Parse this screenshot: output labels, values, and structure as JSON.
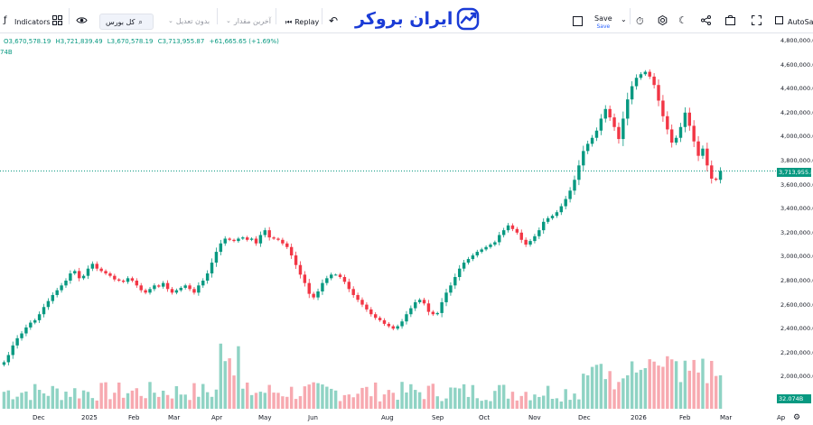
{
  "toolbar": {
    "symbol_icon": "pine-logo-icon",
    "indicators_label": "Indicators",
    "symbol_label": "کل بورس",
    "adjust_label": "بدون تعدیل",
    "last_value_label": "آخرین مقدار",
    "replay_label": "Replay",
    "save_label": "Save",
    "save_sub": "Save",
    "autosave_label": "AutoSave"
  },
  "brand": {
    "name": "ایران بروکر",
    "color": "#1a3bd6"
  },
  "legend": {
    "open": "O3,670,578.19",
    "high": "H3,721,839.49",
    "low": "L3,670,578.19",
    "close": "C3,713,955.87",
    "change": "+61,665.65 (+1.69%)",
    "volume_short": "74B"
  },
  "price_axis": {
    "labels": [
      "4,800,000.00",
      "4,600,000.00",
      "4,400,000.00",
      "4,200,000.00",
      "4,000,000.00",
      "3,800,000.00",
      "3,600,000.00",
      "3,400,000.00",
      "3,200,000.00",
      "3,000,000.00",
      "2,800,000.00",
      "2,600,000.00",
      "2,400,000.00",
      "2,200,000.00",
      "2,000,000.00"
    ],
    "current_price_tag": "3,713,955.8",
    "volume_tag": "32.074B"
  },
  "time_axis": {
    "labels": [
      "Dec",
      "2025",
      "Feb",
      "Mar",
      "Apr",
      "May",
      "Jun",
      "Aug",
      "Sep",
      "Oct",
      "Nov",
      "Dec",
      "2026",
      "Feb",
      "Mar",
      "Ap"
    ]
  },
  "colors": {
    "up": "#089981",
    "down": "#f23645",
    "up_volume": "#8fd3c4",
    "down_volume": "#f7a9b0",
    "last_price_line": "#089981"
  },
  "chart_data": {
    "type": "candlestick",
    "ylim": [
      2000000,
      4800000
    ],
    "close_series": [
      2120000,
      2180000,
      2260000,
      2320000,
      2360000,
      2410000,
      2450000,
      2470000,
      2520000,
      2580000,
      2630000,
      2680000,
      2720000,
      2760000,
      2800000,
      2860000,
      2880000,
      2820000,
      2840000,
      2900000,
      2940000,
      2900000,
      2880000,
      2860000,
      2840000,
      2810000,
      2800000,
      2790000,
      2820000,
      2800000,
      2760000,
      2720000,
      2700000,
      2730000,
      2760000,
      2750000,
      2780000,
      2730000,
      2700000,
      2720000,
      2740000,
      2760000,
      2730000,
      2700000,
      2760000,
      2800000,
      2860000,
      2950000,
      3040000,
      3110000,
      3150000,
      3140000,
      3130000,
      3150000,
      3160000,
      3140000,
      3150000,
      3110000,
      3180000,
      3220000,
      3160000,
      3150000,
      3140000,
      3110000,
      3080000,
      3010000,
      2930000,
      2850000,
      2780000,
      2690000,
      2660000,
      2710000,
      2780000,
      2820000,
      2850000,
      2850000,
      2830000,
      2790000,
      2730000,
      2680000,
      2640000,
      2600000,
      2560000,
      2520000,
      2490000,
      2470000,
      2440000,
      2420000,
      2400000,
      2420000,
      2460000,
      2520000,
      2570000,
      2620000,
      2640000,
      2610000,
      2540000,
      2520000,
      2530000,
      2620000,
      2700000,
      2760000,
      2830000,
      2900000,
      2950000,
      2980000,
      3010000,
      3040000,
      3060000,
      3080000,
      3100000,
      3120000,
      3180000,
      3220000,
      3260000,
      3230000,
      3200000,
      3140000,
      3100000,
      3130000,
      3170000,
      3220000,
      3290000,
      3320000,
      3340000,
      3370000,
      3420000,
      3480000,
      3550000,
      3640000,
      3760000,
      3880000,
      3940000,
      3990000,
      4050000,
      4150000,
      4230000,
      4160000,
      4080000,
      3980000,
      4150000,
      4310000,
      4420000,
      4490000,
      4520000,
      4540000,
      4500000,
      4430000,
      4300000,
      4170000,
      4060000,
      3950000,
      3990000,
      4080000,
      4200000,
      4090000,
      3960000,
      3840000,
      3900000,
      3760000,
      3650000,
      3640000,
      3714000
    ]
  }
}
